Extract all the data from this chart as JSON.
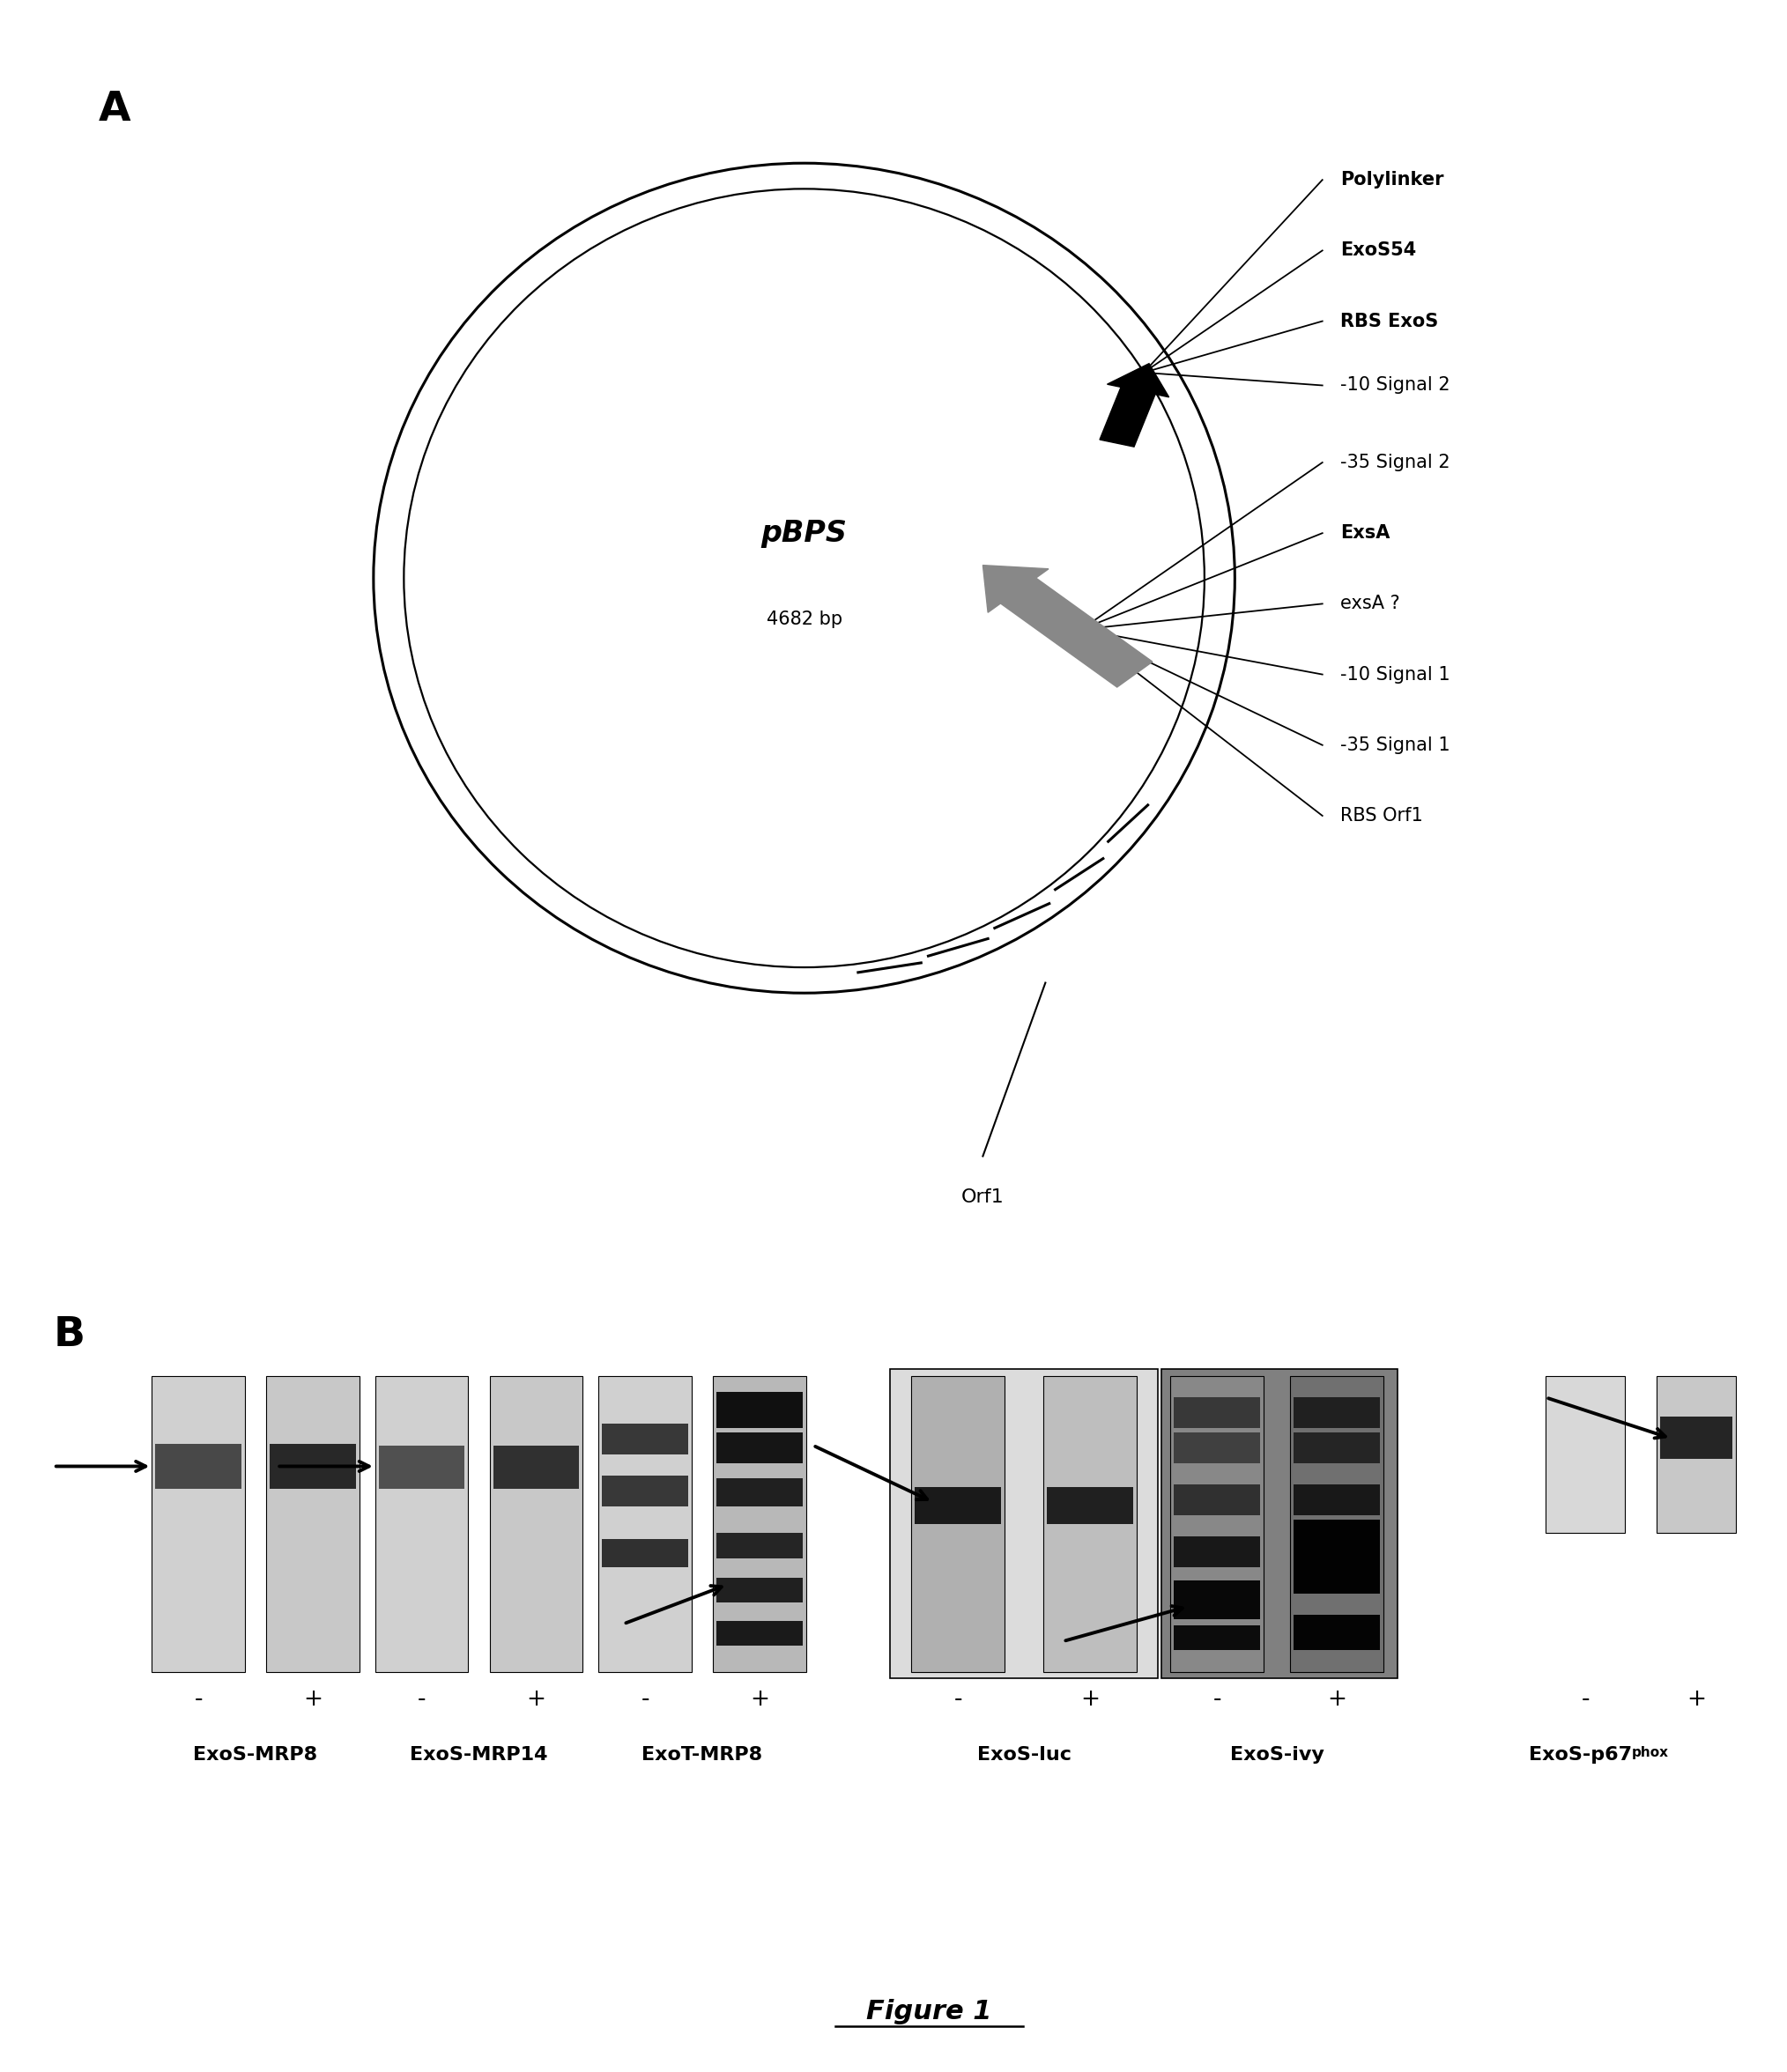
{
  "figure_title": "Figure 1",
  "panel_A_label": "A",
  "panel_B_label": "B",
  "plasmid_name": "pBPS",
  "plasmid_bp": "4682 bp",
  "labels_right": [
    "Polylinker",
    "ExoS54",
    "RBS ExoS",
    "-10 Signal 2",
    "-35 Signal 2",
    "ExsA",
    "exsA ?",
    "-10 Signal 1",
    "-35 Signal 1",
    "RBS Orf1"
  ],
  "label_bottom": "Orf1",
  "gel_labels": [
    "ExoS-MRP8",
    "ExoS-MRP14",
    "ExoT-MRP8",
    "ExoS-luc",
    "ExoS-ivy",
    "ExoS-p67phox"
  ],
  "background_color": "#ffffff"
}
